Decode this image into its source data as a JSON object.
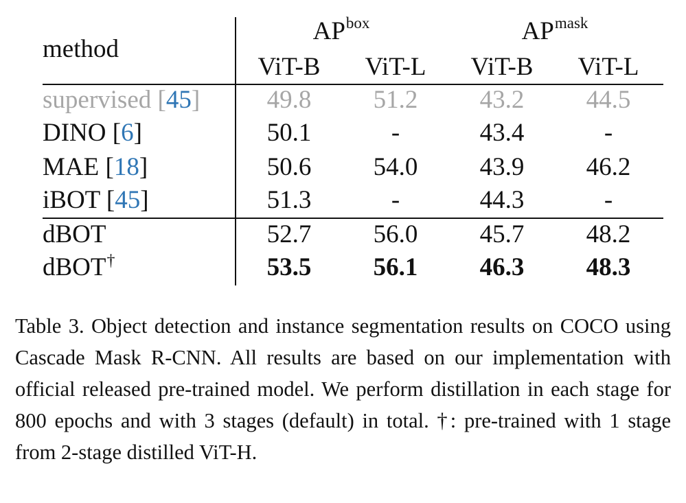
{
  "table": {
    "header": {
      "method_label": "method",
      "groups": [
        {
          "base": "AP",
          "sup": "box"
        },
        {
          "base": "AP",
          "sup": "mask"
        }
      ],
      "subcolumns": [
        "ViT-B",
        "ViT-L",
        "ViT-B",
        "ViT-L"
      ]
    },
    "rows": [
      {
        "method": "supervised",
        "cite": "45",
        "values": [
          "49.8",
          "51.2",
          "43.2",
          "44.5"
        ],
        "style": "gray"
      },
      {
        "method": "DINO",
        "cite": "6",
        "values": [
          "50.1",
          "-",
          "43.4",
          "-"
        ],
        "style": "normal"
      },
      {
        "method": "MAE",
        "cite": "18",
        "values": [
          "50.6",
          "54.0",
          "43.9",
          "46.2"
        ],
        "style": "normal"
      },
      {
        "method": "iBOT",
        "cite": "45",
        "values": [
          "51.3",
          "-",
          "44.3",
          "-"
        ],
        "style": "normal"
      },
      {
        "method": "dBOT",
        "cite": "",
        "values": [
          "52.7",
          "56.0",
          "45.7",
          "48.2"
        ],
        "style": "normal"
      },
      {
        "method": "dBOT",
        "mark": "†",
        "cite": "",
        "values": [
          "53.5",
          "56.1",
          "46.3",
          "48.3"
        ],
        "style": "bold"
      }
    ]
  },
  "caption": "Table 3.  Object detection and instance segmentation results on COCO using Cascade Mask R-CNN. All results are based on our implementation with official released pre-trained model. We perform distillation in each stage for 800 epochs and with 3 stages (default) in total. †: pre-trained with 1 stage from 2-stage distilled ViT-H."
}
